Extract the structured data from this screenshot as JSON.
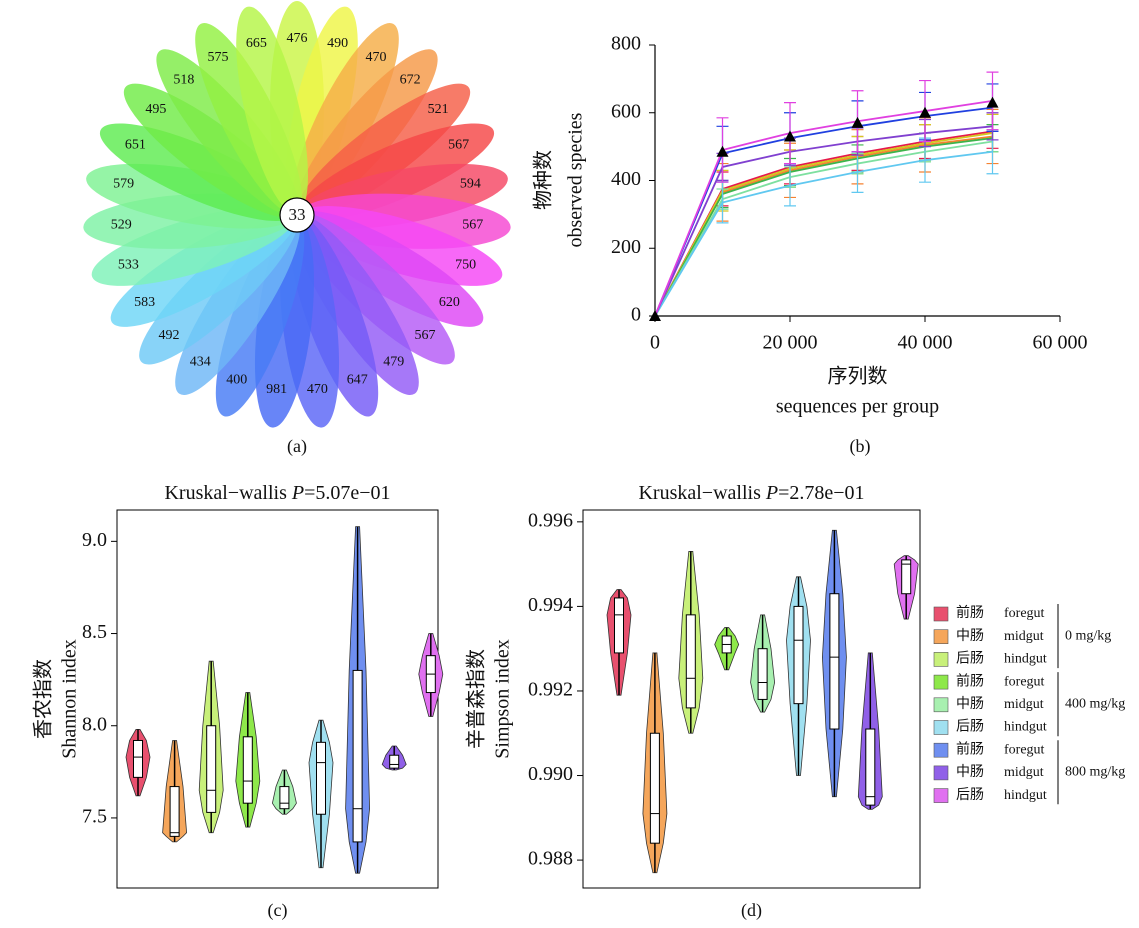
{
  "chart_data": [
    {
      "type": "flower",
      "core": 33,
      "values": [
        476,
        490,
        470,
        672,
        521,
        567,
        594,
        567,
        750,
        620,
        567,
        479,
        647,
        470,
        981,
        400,
        434,
        492,
        583,
        533,
        529,
        579,
        651,
        495,
        518,
        575,
        665
      ],
      "colors": [
        "hsl(75,90%,62%)",
        "hsl(62,90%,62%)",
        "hsl(35,90%,62%)",
        "hsl(28,90%,62%)",
        "hsl(8,90%,62%)",
        "hsl(0,90%,62%)",
        "hsl(350,90%,62%)",
        "hsl(312,90%,62%)",
        "hsl(300,90%,62%)",
        "hsl(292,90%,62%)",
        "hsl(275,90%,66%)",
        "hsl(262,90%,66%)",
        "hsl(250,90%,66%)",
        "hsl(236,90%,66%)",
        "hsl(228,90%,62%)",
        "hsl(222,90%,62%)",
        "hsl(208,90%,70%)",
        "hsl(200,90%,70%)",
        "hsl(195,90%,70%)",
        "hsl(150,80%,72%)",
        "hsl(140,80%,72%)",
        "hsl(130,80%,72%)",
        "hsl(115,80%,62%)",
        "hsl(105,80%,60%)",
        "hsl(100,80%,60%)",
        "hsl(92,85%,60%)",
        "hsl(82,90%,62%)"
      ],
      "caption": "(a)"
    },
    {
      "type": "line",
      "caption": "(b)",
      "xlabel": [
        "序列数",
        "sequences per group"
      ],
      "ylabel": [
        "物种数",
        "observed species"
      ],
      "x": [
        0,
        10000,
        20000,
        30000,
        40000,
        50000
      ],
      "xlim": [
        0,
        60000
      ],
      "xticks": [
        0,
        {
          "value": 20000,
          "label": "20 000"
        },
        {
          "value": 40000,
          "label": "40 000"
        },
        {
          "value": 60000,
          "label": "60 000"
        }
      ],
      "ylim": [
        0,
        800
      ],
      "yticks": [
        0,
        200,
        400,
        600,
        800
      ],
      "series": [
        {
          "color": "#e6194b",
          "values": [
            0,
            375,
            440,
            480,
            515,
            545
          ],
          "errors": [
            0,
            50,
            50,
            50,
            50,
            50
          ]
        },
        {
          "color": "#f58231",
          "values": [
            0,
            365,
            430,
            470,
            505,
            530
          ],
          "errors": [
            0,
            85,
            80,
            80,
            80,
            80
          ]
        },
        {
          "color": "#d4c820",
          "values": [
            0,
            370,
            435,
            475,
            510,
            540
          ],
          "errors": [
            0,
            60,
            55,
            55,
            55,
            55
          ]
        },
        {
          "color": "#3cb44b",
          "values": [
            0,
            360,
            425,
            465,
            500,
            525
          ],
          "errors": [
            0,
            40,
            40,
            40,
            40,
            40
          ]
        },
        {
          "color": "#7ee0a0",
          "values": [
            0,
            345,
            410,
            450,
            485,
            515
          ],
          "errors": [
            0,
            30,
            30,
            30,
            30,
            30
          ]
        },
        {
          "color": "#60c8f0",
          "values": [
            0,
            335,
            385,
            425,
            460,
            485
          ],
          "errors": [
            0,
            60,
            60,
            60,
            65,
            65
          ]
        },
        {
          "color": "#2040e0",
          "values": [
            0,
            480,
            525,
            560,
            590,
            615
          ],
          "errors": [
            0,
            80,
            75,
            75,
            70,
            70
          ]
        },
        {
          "color": "#8040d0",
          "values": [
            0,
            440,
            485,
            515,
            540,
            560
          ],
          "errors": [
            0,
            40,
            40,
            40,
            40,
            40
          ]
        },
        {
          "color": "#e040e0",
          "values": [
            0,
            490,
            540,
            575,
            605,
            635
          ],
          "errors": [
            0,
            95,
            90,
            90,
            90,
            85
          ]
        },
        {
          "color": "#000000",
          "marker": "triangle",
          "values": [
            0,
            485,
            530,
            570,
            600,
            630
          ]
        }
      ]
    },
    {
      "type": "violin",
      "caption": "(c)",
      "title": [
        "Kruskal−wallis",
        "P",
        "=5.07e−01"
      ],
      "ylabel": [
        "香农指数",
        "Shannon index"
      ],
      "ylim": [
        7.12,
        9.17
      ],
      "yticks": [
        7.5,
        {
          "value": 8,
          "label": "8.0"
        },
        8.5,
        {
          "value": 9,
          "label": "9.0"
        }
      ],
      "boxes": [
        {
          "min": 7.62,
          "q1": 7.72,
          "median": 7.83,
          "q3": 7.92,
          "max": 7.98
        },
        {
          "min": 7.37,
          "q1": 7.4,
          "median": 7.42,
          "q3": 7.67,
          "max": 7.92
        },
        {
          "min": 7.42,
          "q1": 7.53,
          "median": 7.65,
          "q3": 8.0,
          "max": 8.35
        },
        {
          "min": 7.45,
          "q1": 7.58,
          "median": 7.7,
          "q3": 7.94,
          "max": 8.18
        },
        {
          "min": 7.52,
          "q1": 7.55,
          "median": 7.58,
          "q3": 7.67,
          "max": 7.76
        },
        {
          "min": 7.23,
          "q1": 7.52,
          "median": 7.8,
          "q3": 7.91,
          "max": 8.03
        },
        {
          "min": 7.2,
          "q1": 7.37,
          "median": 7.55,
          "q3": 8.3,
          "max": 9.08
        },
        {
          "min": 7.76,
          "q1": 7.77,
          "median": 7.79,
          "q3": 7.84,
          "max": 7.89
        },
        {
          "min": 8.05,
          "q1": 8.18,
          "median": 8.28,
          "q3": 8.38,
          "max": 8.5
        }
      ]
    },
    {
      "type": "violin",
      "caption": "(d)",
      "title": [
        "Kruskal−wallis",
        "P",
        "=2.78e−01"
      ],
      "ylabel": [
        "辛普森指数",
        "Simpson index"
      ],
      "ylim": [
        0.98734,
        0.99628
      ],
      "yticks": [
        0.988,
        {
          "value": 0.99,
          "label": "0.990"
        },
        0.992,
        0.994,
        0.996
      ],
      "boxes": [
        {
          "min": 0.9919,
          "q1": 0.9929,
          "median": 0.9938,
          "q3": 0.9942,
          "max": 0.9944
        },
        {
          "min": 0.9877,
          "q1": 0.9884,
          "median": 0.9891,
          "q3": 0.991,
          "max": 0.9929
        },
        {
          "min": 0.991,
          "q1": 0.9916,
          "median": 0.9923,
          "q3": 0.9938,
          "max": 0.9953
        },
        {
          "min": 0.9925,
          "q1": 0.9929,
          "median": 0.9931,
          "q3": 0.9933,
          "max": 0.9935
        },
        {
          "min": 0.9915,
          "q1": 0.9918,
          "median": 0.9922,
          "q3": 0.993,
          "max": 0.9938
        },
        {
          "min": 0.99,
          "q1": 0.9917,
          "median": 0.9932,
          "q3": 0.994,
          "max": 0.9947
        },
        {
          "min": 0.9895,
          "q1": 0.9911,
          "median": 0.9928,
          "q3": 0.9943,
          "max": 0.9958
        },
        {
          "min": 0.9892,
          "q1": 0.9893,
          "median": 0.9895,
          "q3": 0.9911,
          "max": 0.9929
        },
        {
          "min": 0.9937,
          "q1": 0.9943,
          "median": 0.995,
          "q3": 0.9951,
          "max": 0.9952
        }
      ]
    }
  ],
  "legend": {
    "entries": [
      {
        "cn": "前肠",
        "en": "foregut",
        "color": "#e8506e"
      },
      {
        "cn": "中肠",
        "en": "midgut",
        "color": "#f5a65b"
      },
      {
        "cn": "后肠",
        "en": "hindgut",
        "color": "#c8f07a"
      },
      {
        "cn": "前肠",
        "en": "foregut",
        "color": "#8ee84a"
      },
      {
        "cn": "中肠",
        "en": "midgut",
        "color": "#a8f0b0"
      },
      {
        "cn": "后肠",
        "en": "hindgut",
        "color": "#a0e0f0"
      },
      {
        "cn": "前肠",
        "en": "foregut",
        "color": "#6f8ff0"
      },
      {
        "cn": "中肠",
        "en": "midgut",
        "color": "#9060e8"
      },
      {
        "cn": "后肠",
        "en": "hindgut",
        "color": "#e070f0"
      }
    ],
    "groups": [
      "0 mg/kg",
      "400 mg/kg",
      "800 mg/kg"
    ]
  }
}
